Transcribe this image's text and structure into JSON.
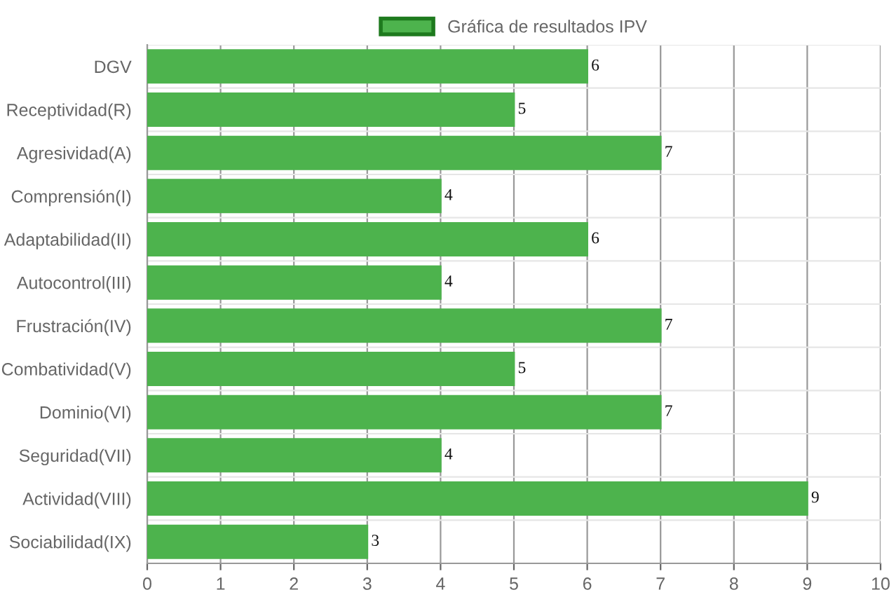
{
  "chart_data": {
    "type": "bar",
    "orientation": "horizontal",
    "categories": [
      "DGV",
      "Receptividad(R)",
      "Agresividad(A)",
      "Comprensión(I)",
      "Adaptabilidad(II)",
      "Autocontrol(III)",
      "Frustración(IV)",
      "Combatividad(V)",
      "Dominio(VI)",
      "Seguridad(VII)",
      "Actividad(VIII)",
      "Sociabilidad(IX)"
    ],
    "series": [
      {
        "name": "Gráfica de resultados IPV",
        "color": "#4db34d",
        "values": [
          6,
          5,
          7,
          4,
          6,
          4,
          7,
          5,
          7,
          4,
          9,
          3
        ]
      }
    ],
    "xlim": [
      0,
      10
    ],
    "xticks": [
      0,
      1,
      2,
      3,
      4,
      5,
      6,
      7,
      8,
      9,
      10
    ],
    "grid": true,
    "legend": "top",
    "data_labels": true
  }
}
